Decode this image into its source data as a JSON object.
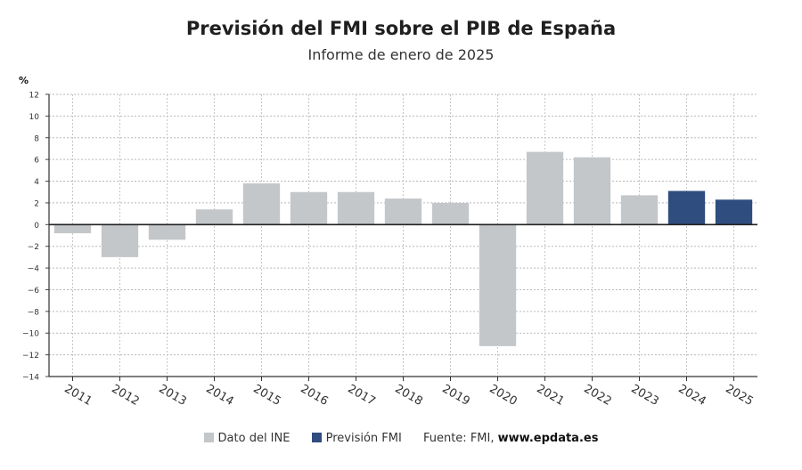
{
  "chart_data": {
    "type": "bar",
    "title": "Previsión del FMI sobre el PIB de España",
    "subtitle": "Informe de enero de 2025",
    "ylabel": "%",
    "ylim": [
      -14,
      12
    ],
    "yticks": [
      12,
      10,
      8,
      6,
      4,
      2,
      0,
      -2,
      -4,
      -6,
      -8,
      -10,
      -12,
      -14
    ],
    "ytick_labels": [
      "12",
      "10",
      "8",
      "6",
      "4",
      "2",
      "0",
      "−2",
      "−4",
      "−6",
      "−8",
      "−10",
      "−12",
      "−14"
    ],
    "grid": true,
    "legend_position": "bottom",
    "categories": [
      "2011",
      "2012",
      "2013",
      "2014",
      "2015",
      "2016",
      "2017",
      "2018",
      "2019",
      "2020",
      "2021",
      "2022",
      "2023",
      "2024",
      "2025"
    ],
    "values": [
      -0.8,
      -3.0,
      -1.4,
      1.4,
      3.8,
      3.0,
      3.0,
      2.4,
      2.0,
      -11.2,
      6.7,
      6.2,
      2.7,
      3.1,
      2.3
    ],
    "series_index": [
      0,
      0,
      0,
      0,
      0,
      0,
      0,
      0,
      0,
      0,
      0,
      0,
      0,
      1,
      1
    ],
    "series": [
      {
        "name": "Dato del INE",
        "color": "#c4c7ca"
      },
      {
        "name": "Previsión FMI",
        "color": "#2f4d7e"
      }
    ]
  },
  "footer": {
    "source_prefix": "Fuente: FMI, ",
    "source_site": "www.epdata.es"
  }
}
